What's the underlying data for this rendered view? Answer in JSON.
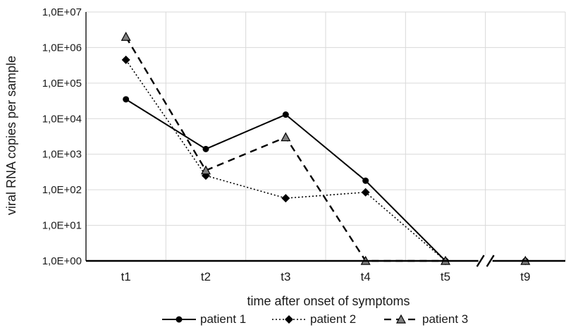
{
  "chart_data": {
    "type": "line",
    "title": "",
    "xlabel": "time after onset of symptoms",
    "ylabel": "viral RNA copies per sample",
    "y_scale": "log",
    "ylim": [
      1,
      10000000
    ],
    "grid": true,
    "legend_position": "bottom",
    "axis_break_between": [
      "t5",
      "t9"
    ],
    "categories": [
      "t1",
      "t2",
      "t3",
      "t4",
      "t5",
      "t9"
    ],
    "y_tick_labels": [
      "1,0E+00",
      "1,0E+01",
      "1,0E+02",
      "1,0E+03",
      "1,0E+04",
      "1,0E+05",
      "1,0E+06",
      "1,0E+07"
    ],
    "series": [
      {
        "name": "patient 1",
        "style": "solid",
        "marker": "circle",
        "color": "#000000",
        "values": [
          35000,
          1400,
          13000,
          180,
          1,
          1
        ]
      },
      {
        "name": "patient 2",
        "style": "dotted",
        "marker": "diamond",
        "color": "#000000",
        "values": [
          450000,
          250,
          58,
          85,
          1,
          1
        ]
      },
      {
        "name": "patient 3",
        "style": "dashed",
        "marker": "triangle",
        "color": "#000000",
        "marker_fill": "#808080",
        "values": [
          2000000,
          350,
          3000,
          1,
          1,
          1
        ]
      }
    ]
  }
}
